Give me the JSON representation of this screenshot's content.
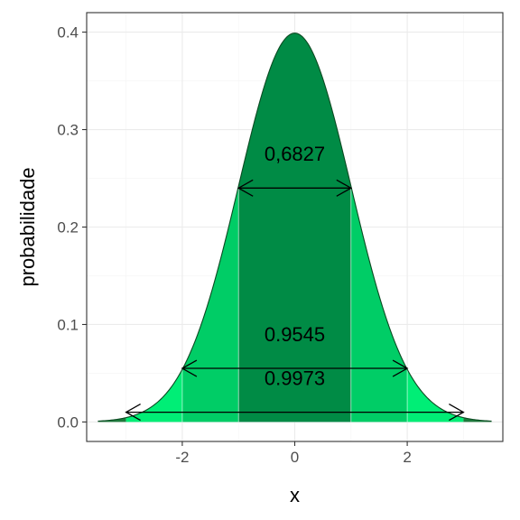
{
  "chart_data": {
    "type": "area",
    "title": "",
    "xlabel": "x",
    "ylabel": "probabilidade",
    "xlim": [
      -3.7,
      3.7
    ],
    "ylim": [
      -0.02,
      0.42
    ],
    "x_ticks": [
      -2,
      0,
      2
    ],
    "x_tick_labels": [
      "-2",
      "0",
      "2"
    ],
    "y_ticks": [
      0.0,
      0.1,
      0.2,
      0.3,
      0.4
    ],
    "y_tick_labels": [
      "0.0",
      "0.1",
      "0.2",
      "0.3",
      "0.4"
    ],
    "grid": true,
    "curve": {
      "distribution": "normal",
      "mean": 0,
      "sd": 1,
      "x_range": [
        -3.5,
        3.5
      ]
    },
    "regions": [
      {
        "from": -3.5,
        "to": -3,
        "color": "#1e7a3c"
      },
      {
        "from": -3,
        "to": -2,
        "color": "#00ee76"
      },
      {
        "from": -2,
        "to": -1,
        "color": "#00cd66"
      },
      {
        "from": -1,
        "to": 1,
        "color": "#008b45"
      },
      {
        "from": 1,
        "to": 2,
        "color": "#00cd66"
      },
      {
        "from": 2,
        "to": 3,
        "color": "#00ee76"
      },
      {
        "from": 3,
        "to": 3.5,
        "color": "#1e7a3c"
      }
    ],
    "annotations": [
      {
        "label": "0,6827",
        "from": -1,
        "to": 1,
        "arrow_y": 0.24,
        "label_y": 0.268
      },
      {
        "label": "0.9545",
        "from": -2,
        "to": 2,
        "arrow_y": 0.055,
        "label_y": 0.083
      },
      {
        "label": "0.9973",
        "from": -3,
        "to": 3,
        "arrow_y": 0.01,
        "label_y": 0.038
      }
    ]
  }
}
